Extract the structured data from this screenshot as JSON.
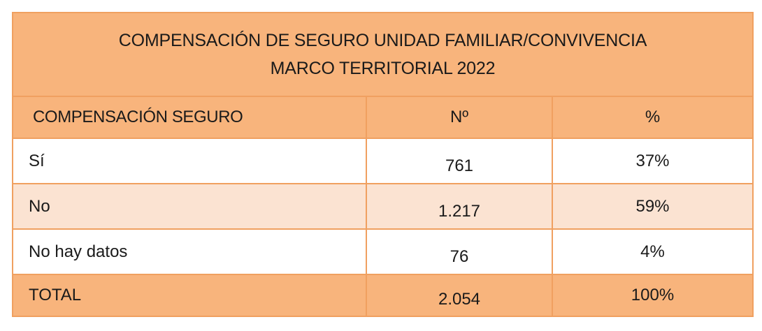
{
  "table": {
    "title_line1": "COMPENSACIÓN DE SEGURO UNIDAD FAMILIAR/CONVIVENCIA",
    "title_line2": "MARCO TERRITORIAL 2022",
    "headers": [
      "COMPENSACIÓN SEGURO",
      "Nº",
      "%"
    ],
    "rows": [
      {
        "label": "Sí",
        "count": "761",
        "percent": "37%"
      },
      {
        "label": "No",
        "count": "1.217",
        "percent": "59%"
      },
      {
        "label": "No hay datos",
        "count": "76",
        "percent": "4%"
      }
    ],
    "total": {
      "label": "TOTAL",
      "count": "2.054",
      "percent": "100%"
    }
  },
  "colors": {
    "header_fill": "#f8b47c",
    "border": "#f0a060",
    "alt_row_fill": "#fbe3d2",
    "row_fill": "#ffffff"
  }
}
